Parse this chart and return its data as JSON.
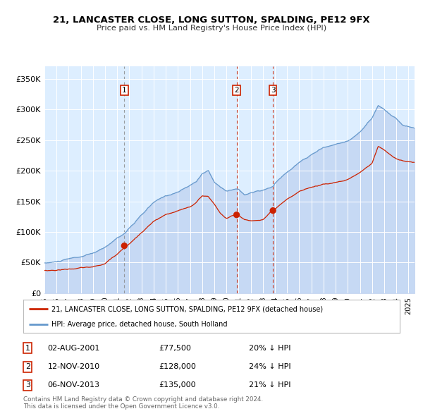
{
  "title": "21, LANCASTER CLOSE, LONG SUTTON, SPALDING, PE12 9FX",
  "subtitle": "Price paid vs. HM Land Registry's House Price Index (HPI)",
  "hpi_color": "#6699cc",
  "property_color": "#cc2200",
  "background_color": "#ddeeff",
  "sale_prices": [
    77500,
    128000,
    135000
  ],
  "sale_labels": [
    "1",
    "2",
    "3"
  ],
  "legend_property": "21, LANCASTER CLOSE, LONG SUTTON, SPALDING, PE12 9FX (detached house)",
  "legend_hpi": "HPI: Average price, detached house, South Holland",
  "table_rows": [
    [
      "1",
      "02-AUG-2001",
      "£77,500",
      "20% ↓ HPI"
    ],
    [
      "2",
      "12-NOV-2010",
      "£128,000",
      "24% ↓ HPI"
    ],
    [
      "3",
      "06-NOV-2013",
      "£135,000",
      "21% ↓ HPI"
    ]
  ],
  "footer": "Contains HM Land Registry data © Crown copyright and database right 2024.\nThis data is licensed under the Open Government Licence v3.0.",
  "ylim": [
    0,
    370000
  ],
  "yticks": [
    0,
    50000,
    100000,
    150000,
    200000,
    250000,
    300000,
    350000
  ],
  "ytick_labels": [
    "£0",
    "£50K",
    "£100K",
    "£150K",
    "£200K",
    "£250K",
    "£300K",
    "£350K"
  ],
  "xstart": 1995.0,
  "xend": 2025.5,
  "hpi_anchors_t": [
    1995.0,
    1996.0,
    1997.0,
    1998.0,
    1999.0,
    2000.0,
    2001.0,
    2001.67,
    2002.0,
    2003.0,
    2004.0,
    2005.0,
    2006.0,
    2007.0,
    2007.5,
    2008.0,
    2008.5,
    2009.0,
    2009.5,
    2010.0,
    2010.83,
    2011.0,
    2011.5,
    2012.0,
    2013.0,
    2013.83,
    2014.0,
    2015.0,
    2016.0,
    2017.0,
    2018.0,
    2019.0,
    2020.0,
    2021.0,
    2022.0,
    2022.5,
    2023.0,
    2023.5,
    2024.0,
    2024.5,
    2025.5
  ],
  "hpi_anchors_v": [
    49000,
    51000,
    55000,
    58000,
    63000,
    72000,
    88000,
    97000,
    105000,
    125000,
    145000,
    155000,
    162000,
    172000,
    178000,
    192000,
    197000,
    178000,
    170000,
    165000,
    168000,
    167000,
    158000,
    162000,
    165000,
    170000,
    175000,
    193000,
    208000,
    220000,
    232000,
    237000,
    243000,
    258000,
    280000,
    302000,
    295000,
    287000,
    280000,
    270000,
    265000
  ],
  "prop_anchors_t": [
    1995.0,
    1996.0,
    1997.0,
    1998.0,
    1999.0,
    2000.0,
    2001.0,
    2001.67,
    2002.0,
    2003.0,
    2004.0,
    2005.0,
    2006.0,
    2007.0,
    2007.5,
    2008.0,
    2008.5,
    2009.0,
    2009.5,
    2010.0,
    2010.83,
    2011.0,
    2011.5,
    2012.0,
    2013.0,
    2013.83,
    2014.0,
    2015.0,
    2016.0,
    2017.0,
    2018.0,
    2019.0,
    2020.0,
    2021.0,
    2022.0,
    2022.5,
    2023.0,
    2023.5,
    2024.0,
    2024.5,
    2025.5
  ],
  "prop_anchors_v": [
    37000,
    38000,
    40000,
    42000,
    43000,
    48000,
    65000,
    77500,
    82000,
    100000,
    118000,
    128000,
    133000,
    140000,
    147000,
    158000,
    157000,
    145000,
    130000,
    122000,
    128000,
    127000,
    120000,
    118000,
    120000,
    135000,
    136000,
    150000,
    163000,
    170000,
    175000,
    178000,
    182000,
    195000,
    210000,
    238000,
    232000,
    225000,
    218000,
    215000,
    212000
  ]
}
